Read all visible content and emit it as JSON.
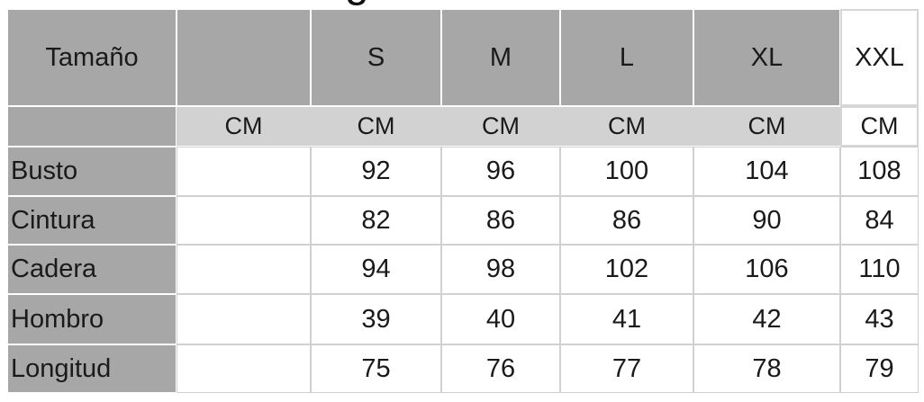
{
  "page": {
    "cropped_heading_fragment": "g"
  },
  "table": {
    "unit_label": "CM",
    "highlighted_column": "XXL",
    "header": {
      "labels": [
        "Tamaño",
        "",
        "S",
        "M",
        "L",
        "XL",
        "XXL"
      ],
      "keys": [
        "tamano",
        "blank",
        "s",
        "m",
        "l",
        "xl",
        "xxl"
      ]
    },
    "unit_row": [
      "",
      "CM",
      "CM",
      "CM",
      "CM",
      "CM",
      "CM"
    ],
    "rows": [
      {
        "key": "busto",
        "label": "Busto",
        "values": [
          "",
          "92",
          "96",
          "100",
          "104",
          "108"
        ]
      },
      {
        "key": "cintura",
        "label": "Cintura",
        "values": [
          "",
          "82",
          "86",
          "86",
          "90",
          "84"
        ]
      },
      {
        "key": "cadera",
        "label": "Cadera",
        "values": [
          "",
          "94",
          "98",
          "102",
          "106",
          "110"
        ]
      },
      {
        "key": "hombro",
        "label": "Hombro",
        "values": [
          "",
          "39",
          "40",
          "41",
          "42",
          "43"
        ]
      },
      {
        "key": "longitud",
        "label": "Longitud",
        "values": [
          "",
          "75",
          "76",
          "77",
          "78",
          "79"
        ]
      }
    ]
  },
  "chart_data": {
    "type": "table",
    "title": "",
    "columns": [
      "Tamaño",
      "",
      "S",
      "M",
      "L",
      "XL",
      "XXL"
    ],
    "unit_row": [
      "",
      "CM",
      "CM",
      "CM",
      "CM",
      "CM",
      "CM"
    ],
    "rows": [
      {
        "label": "Busto",
        "values": [
          null,
          92,
          96,
          100,
          104,
          108
        ]
      },
      {
        "label": "Cintura",
        "values": [
          null,
          82,
          86,
          86,
          90,
          84
        ]
      },
      {
        "label": "Cadera",
        "values": [
          null,
          94,
          98,
          102,
          106,
          110
        ]
      },
      {
        "label": "Hombro",
        "values": [
          null,
          39,
          40,
          41,
          42,
          43
        ]
      },
      {
        "label": "Longitud",
        "values": [
          null,
          75,
          76,
          77,
          78,
          79
        ]
      }
    ],
    "layout_hints": {
      "header_background": "#a7a7a7",
      "unit_band_background": "#d2d2d2",
      "highlighted_column": "XXL",
      "grid_line_color": "#d0d0d0"
    }
  },
  "colors": {
    "header_gray": "#a7a7a7",
    "unit_band_gray": "#d2d2d2",
    "grid_line": "#d0d0d0",
    "cell_white": "#ffffff",
    "text": "#1a1a1a"
  }
}
